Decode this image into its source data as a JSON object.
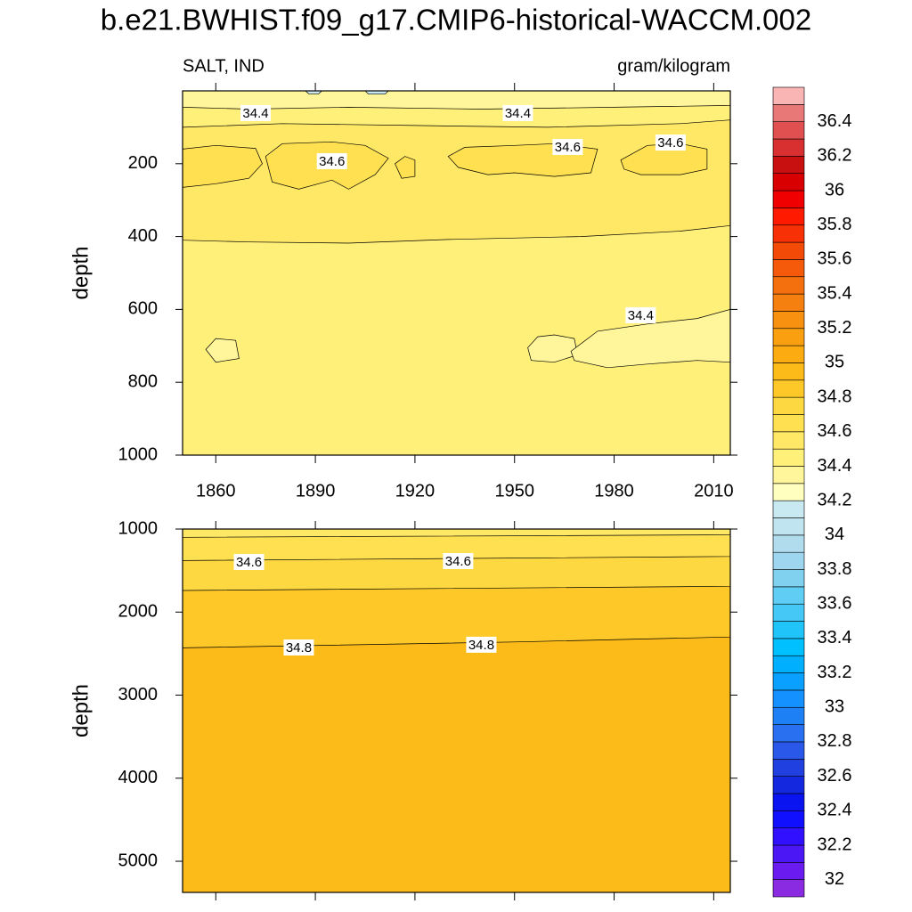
{
  "title": "b.e21.BWHIST.f09_g17.CMIP6-historical-WACCM.002",
  "chart_data": [
    {
      "type": "contour",
      "left_label": "SALT, IND",
      "right_label": "gram/kilogram",
      "ylabel": "depth",
      "xlim": [
        1850,
        2015
      ],
      "xticks": [
        1860,
        1890,
        1920,
        1950,
        1980,
        2010
      ],
      "ylim": [
        0,
        1000
      ],
      "yticks": [
        200,
        400,
        600,
        800,
        1000
      ],
      "y_reversed": true,
      "regions": [
        {
          "level": 34.4,
          "points": [
            [
              1850,
              0
            ],
            [
              2015,
              0
            ],
            [
              2015,
              1000
            ],
            [
              1850,
              1000
            ]
          ]
        },
        {
          "level": 34.3,
          "points": [
            [
              1850,
              0
            ],
            [
              2015,
              0
            ],
            [
              2015,
              40
            ],
            [
              1980,
              45
            ],
            [
              1940,
              50
            ],
            [
              1900,
              45
            ],
            [
              1870,
              50
            ],
            [
              1850,
              45
            ]
          ]
        },
        {
          "level": 34.5,
          "points": [
            [
              1850,
              100
            ],
            [
              1880,
              90
            ],
            [
              1920,
              95
            ],
            [
              1960,
              100
            ],
            [
              2000,
              90
            ],
            [
              2015,
              80
            ],
            [
              2015,
              370
            ],
            [
              2000,
              385
            ],
            [
              1970,
              400
            ],
            [
              1930,
              408
            ],
            [
              1900,
              418
            ],
            [
              1870,
              415
            ],
            [
              1850,
              410
            ]
          ]
        },
        {
          "level": 34.6,
          "points": [
            [
              1850,
              160
            ],
            [
              1860,
              150
            ],
            [
              1872,
              158
            ],
            [
              1874,
              200
            ],
            [
              1870,
              240
            ],
            [
              1860,
              255
            ],
            [
              1850,
              265
            ]
          ]
        },
        {
          "level": 34.6,
          "points": [
            [
              1875,
              180
            ],
            [
              1880,
              145
            ],
            [
              1895,
              140
            ],
            [
              1905,
              150
            ],
            [
              1912,
              185
            ],
            [
              1908,
              230
            ],
            [
              1900,
              270
            ],
            [
              1895,
              245
            ],
            [
              1885,
              270
            ],
            [
              1877,
              250
            ]
          ]
        },
        {
          "level": 34.6,
          "points": [
            [
              1914,
              200
            ],
            [
              1917,
              180
            ],
            [
              1920,
              190
            ],
            [
              1920,
              235
            ],
            [
              1916,
              240
            ]
          ]
        },
        {
          "level": 34.6,
          "points": [
            [
              1930,
              180
            ],
            [
              1935,
              155
            ],
            [
              1950,
              150
            ],
            [
              1962,
              145
            ],
            [
              1975,
              160
            ],
            [
              1973,
              225
            ],
            [
              1962,
              235
            ],
            [
              1950,
              225
            ],
            [
              1942,
              230
            ],
            [
              1933,
              210
            ]
          ]
        },
        {
          "level": 34.6,
          "points": [
            [
              1982,
              190
            ],
            [
              1990,
              150
            ],
            [
              2000,
              145
            ],
            [
              2008,
              160
            ],
            [
              2008,
              215
            ],
            [
              2000,
              230
            ],
            [
              1988,
              230
            ],
            [
              1983,
              215
            ]
          ]
        },
        {
          "level": 34.3,
          "points": [
            [
              1857,
              710
            ],
            [
              1860,
              680
            ],
            [
              1866,
              685
            ],
            [
              1867,
              735
            ],
            [
              1860,
              745
            ]
          ]
        },
        {
          "level": 34.3,
          "points": [
            [
              1954,
              705
            ],
            [
              1957,
              675
            ],
            [
              1962,
              670
            ],
            [
              1968,
              680
            ],
            [
              1969,
              725
            ],
            [
              1962,
              745
            ],
            [
              1955,
              740
            ]
          ]
        },
        {
          "level": 34.3,
          "points": [
            [
              1967,
              715
            ],
            [
              1975,
              660
            ],
            [
              1990,
              640
            ],
            [
              2005,
              625
            ],
            [
              2015,
              600
            ],
            [
              2015,
              745
            ],
            [
              2005,
              740
            ],
            [
              1990,
              750
            ],
            [
              1978,
              760
            ],
            [
              1968,
              740
            ]
          ]
        },
        {
          "level": 34.1,
          "points": [
            [
              1887,
              0
            ],
            [
              1892,
              0
            ],
            [
              1891,
              8
            ],
            [
              1888,
              8
            ]
          ]
        },
        {
          "level": 34.1,
          "points": [
            [
              1905,
              0
            ],
            [
              1912,
              0
            ],
            [
              1911,
              9
            ],
            [
              1906,
              9
            ]
          ]
        }
      ],
      "contour_labels": [
        {
          "label": "34.4",
          "x": 1872,
          "y": 61
        },
        {
          "label": "34.4",
          "x": 1951,
          "y": 61
        },
        {
          "label": "34.6",
          "x": 1895,
          "y": 193
        },
        {
          "label": "34.6",
          "x": 1966,
          "y": 154
        },
        {
          "label": "34.6",
          "x": 1997,
          "y": 142
        },
        {
          "label": "34.4",
          "x": 1988,
          "y": 616
        }
      ]
    },
    {
      "type": "contour",
      "ylabel": "depth",
      "xlim": [
        1850,
        2015
      ],
      "xticks": [
        1860,
        1890,
        1920,
        1950,
        1980,
        2010
      ],
      "ylim": [
        1000,
        5375
      ],
      "yticks": [
        1000,
        2000,
        3000,
        4000,
        5000
      ],
      "y_reversed": true,
      "regions": [
        {
          "level": 34.9,
          "points": [
            [
              1850,
              1000
            ],
            [
              2015,
              1000
            ],
            [
              2015,
              5375
            ],
            [
              1850,
              5375
            ]
          ]
        },
        {
          "level": 34.8,
          "points": [
            [
              1850,
              1000
            ],
            [
              2015,
              1000
            ],
            [
              2015,
              2300
            ],
            [
              1950,
              2360
            ],
            [
              1850,
              2430
            ]
          ]
        },
        {
          "level": 34.7,
          "points": [
            [
              1850,
              1000
            ],
            [
              2015,
              1000
            ],
            [
              2015,
              1690
            ],
            [
              1850,
              1740
            ]
          ]
        },
        {
          "level": 34.6,
          "points": [
            [
              1850,
              1000
            ],
            [
              2015,
              1000
            ],
            [
              2015,
              1330
            ],
            [
              1850,
              1380
            ]
          ]
        },
        {
          "level": 34.5,
          "points": [
            [
              1850,
              1000
            ],
            [
              2015,
              1000
            ],
            [
              2015,
              1070
            ],
            [
              1850,
              1100
            ]
          ]
        }
      ],
      "contour_labels": [
        {
          "label": "34.6",
          "x": 1870,
          "y": 1397
        },
        {
          "label": "34.6",
          "x": 1933,
          "y": 1386
        },
        {
          "label": "34.8",
          "x": 1885,
          "y": 2426
        },
        {
          "label": "34.8",
          "x": 1940,
          "y": 2393
        }
      ]
    }
  ],
  "colorbar": {
    "clim": [
      31.9,
      36.6
    ],
    "ticks": [
      32,
      32.2,
      32.4,
      32.6,
      32.8,
      33,
      33.2,
      33.4,
      33.6,
      33.8,
      34,
      34.2,
      34.4,
      34.6,
      34.8,
      35,
      35.2,
      35.4,
      35.6,
      35.8,
      36,
      36.2,
      36.4
    ],
    "colors": [
      "#8a2be2",
      "#6a1cf0",
      "#4b18f5",
      "#3010ff",
      "#1010ff",
      "#0a14f0",
      "#1428e0",
      "#2040e0",
      "#2a58e8",
      "#2870f0",
      "#1e80f5",
      "#1490ff",
      "#0aa0ff",
      "#00b0ff",
      "#00c0ff",
      "#20c4f8",
      "#45c8f5",
      "#60cdf5",
      "#80d0f0",
      "#9ed6ef",
      "#b0dcee",
      "#c0e4f0",
      "#c8e8f2",
      "#ffffc0",
      "#fff59a",
      "#fff07a",
      "#ffe866",
      "#ffe050",
      "#fed840",
      "#fec828",
      "#fcbb18",
      "#fcab10",
      "#faa010",
      "#f89010",
      "#f6800f",
      "#f4700e",
      "#f45a0a",
      "#f44a08",
      "#f83005",
      "#ff1a00",
      "#f00000",
      "#d80000",
      "#c81010",
      "#d83030",
      "#e05050",
      "#e87878",
      "#f9b4b4"
    ]
  }
}
